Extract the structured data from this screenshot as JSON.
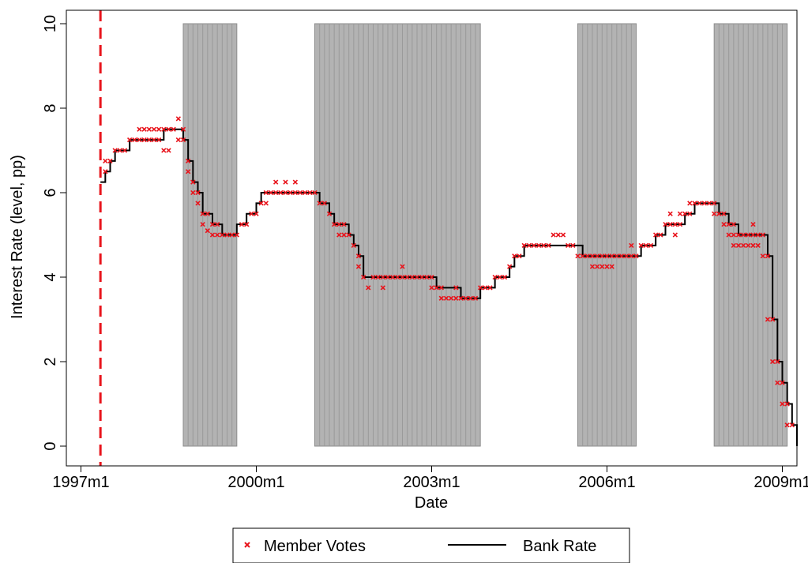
{
  "chart_data": {
    "type": "line",
    "title": "",
    "xlabel": "Date",
    "ylabel": "Interest Rate (level, pp)",
    "x_unit": "months",
    "xlim": [
      "1996-10",
      "2009-04"
    ],
    "ylim": [
      0,
      10
    ],
    "x_ticks": [
      {
        "value": "1997-01",
        "label": "1997m1"
      },
      {
        "value": "2000-01",
        "label": "2000m1"
      },
      {
        "value": "2003-01",
        "label": "2003m1"
      },
      {
        "value": "2006-01",
        "label": "2006m1"
      },
      {
        "value": "2009-01",
        "label": "2009m1"
      }
    ],
    "y_ticks": [
      {
        "value": 0,
        "label": "0"
      },
      {
        "value": 2,
        "label": "2"
      },
      {
        "value": 4,
        "label": "4"
      },
      {
        "value": 6,
        "label": "6"
      },
      {
        "value": 8,
        "label": "8"
      },
      {
        "value": 10,
        "label": "10"
      }
    ],
    "grid": false,
    "vertical_line": {
      "x": "1997-05",
      "style": "dashed",
      "color": "#e8141c"
    },
    "shaded_periods": [
      {
        "start": "1998-10",
        "end": "1999-09"
      },
      {
        "start": "2001-01",
        "end": "2003-11"
      },
      {
        "start": "2005-07",
        "end": "2006-07"
      },
      {
        "start": "2007-11",
        "end": "2009-02"
      }
    ],
    "series": [
      {
        "name": "Bank Rate",
        "type": "step",
        "color": "#000000",
        "points": [
          [
            "1997-05",
            6.25
          ],
          [
            "1997-06",
            6.5
          ],
          [
            "1997-07",
            6.75
          ],
          [
            "1997-08",
            7.0
          ],
          [
            "1997-11",
            7.25
          ],
          [
            "1998-06",
            7.5
          ],
          [
            "1998-10",
            7.25
          ],
          [
            "1998-11",
            6.75
          ],
          [
            "1998-12",
            6.25
          ],
          [
            "1999-01",
            6.0
          ],
          [
            "1999-02",
            5.5
          ],
          [
            "1999-04",
            5.25
          ],
          [
            "1999-06",
            5.0
          ],
          [
            "1999-09",
            5.25
          ],
          [
            "1999-11",
            5.5
          ],
          [
            "2000-01",
            5.75
          ],
          [
            "2000-02",
            6.0
          ],
          [
            "2001-02",
            5.75
          ],
          [
            "2001-04",
            5.5
          ],
          [
            "2001-05",
            5.25
          ],
          [
            "2001-08",
            5.0
          ],
          [
            "2001-09",
            4.75
          ],
          [
            "2001-10",
            4.5
          ],
          [
            "2001-11",
            4.0
          ],
          [
            "2003-02",
            3.75
          ],
          [
            "2003-07",
            3.5
          ],
          [
            "2003-11",
            3.75
          ],
          [
            "2004-02",
            4.0
          ],
          [
            "2004-05",
            4.25
          ],
          [
            "2004-06",
            4.5
          ],
          [
            "2004-08",
            4.75
          ],
          [
            "2005-08",
            4.5
          ],
          [
            "2006-08",
            4.75
          ],
          [
            "2006-11",
            5.0
          ],
          [
            "2007-01",
            5.25
          ],
          [
            "2007-05",
            5.5
          ],
          [
            "2007-07",
            5.75
          ],
          [
            "2007-12",
            5.5
          ],
          [
            "2008-02",
            5.25
          ],
          [
            "2008-04",
            5.0
          ],
          [
            "2008-10",
            4.5
          ],
          [
            "2008-11",
            3.0
          ],
          [
            "2008-12",
            2.0
          ],
          [
            "2009-01",
            1.5
          ],
          [
            "2009-02",
            1.0
          ],
          [
            "2009-03",
            0.5
          ]
        ]
      },
      {
        "name": "Member Votes",
        "type": "scatter",
        "color": "#e8141c",
        "marker": "x",
        "points": [
          [
            "1997-06",
            6.5
          ],
          [
            "1997-06",
            6.75
          ],
          [
            "1997-07",
            6.75
          ],
          [
            "1997-08",
            7.0
          ],
          [
            "1997-09",
            7.0
          ],
          [
            "1997-10",
            7.0
          ],
          [
            "1997-11",
            7.25
          ],
          [
            "1997-12",
            7.25
          ],
          [
            "1998-01",
            7.25
          ],
          [
            "1998-01",
            7.5
          ],
          [
            "1998-02",
            7.25
          ],
          [
            "1998-02",
            7.5
          ],
          [
            "1998-03",
            7.25
          ],
          [
            "1998-03",
            7.5
          ],
          [
            "1998-04",
            7.25
          ],
          [
            "1998-04",
            7.5
          ],
          [
            "1998-05",
            7.25
          ],
          [
            "1998-05",
            7.5
          ],
          [
            "1998-06",
            7.0
          ],
          [
            "1998-06",
            7.5
          ],
          [
            "1998-07",
            7.0
          ],
          [
            "1998-07",
            7.5
          ],
          [
            "1998-08",
            7.5
          ],
          [
            "1998-09",
            7.25
          ],
          [
            "1998-09",
            7.75
          ],
          [
            "1998-10",
            7.25
          ],
          [
            "1998-10",
            7.5
          ],
          [
            "1998-11",
            6.5
          ],
          [
            "1998-11",
            6.75
          ],
          [
            "1998-12",
            6.0
          ],
          [
            "1998-12",
            6.25
          ],
          [
            "1999-01",
            5.75
          ],
          [
            "1999-01",
            6.0
          ],
          [
            "1999-02",
            5.25
          ],
          [
            "1999-02",
            5.5
          ],
          [
            "1999-03",
            5.1
          ],
          [
            "1999-03",
            5.5
          ],
          [
            "1999-04",
            5.0
          ],
          [
            "1999-04",
            5.25
          ],
          [
            "1999-05",
            5.0
          ],
          [
            "1999-05",
            5.25
          ],
          [
            "1999-06",
            5.0
          ],
          [
            "1999-07",
            5.0
          ],
          [
            "1999-08",
            5.0
          ],
          [
            "1999-09",
            5.0
          ],
          [
            "1999-10",
            5.25
          ],
          [
            "1999-11",
            5.25
          ],
          [
            "1999-12",
            5.5
          ],
          [
            "2000-01",
            5.5
          ],
          [
            "2000-02",
            5.75
          ],
          [
            "2000-03",
            5.75
          ],
          [
            "2000-03",
            6.0
          ],
          [
            "2000-04",
            6.0
          ],
          [
            "2000-05",
            6.0
          ],
          [
            "2000-05",
            6.25
          ],
          [
            "2000-06",
            6.0
          ],
          [
            "2000-07",
            6.0
          ],
          [
            "2000-07",
            6.25
          ],
          [
            "2000-08",
            6.0
          ],
          [
            "2000-09",
            6.0
          ],
          [
            "2000-09",
            6.25
          ],
          [
            "2000-10",
            6.0
          ],
          [
            "2000-11",
            6.0
          ],
          [
            "2000-12",
            6.0
          ],
          [
            "2001-01",
            6.0
          ],
          [
            "2001-02",
            5.75
          ],
          [
            "2001-03",
            5.75
          ],
          [
            "2001-04",
            5.5
          ],
          [
            "2001-05",
            5.25
          ],
          [
            "2001-06",
            5.0
          ],
          [
            "2001-06",
            5.25
          ],
          [
            "2001-07",
            5.0
          ],
          [
            "2001-07",
            5.25
          ],
          [
            "2001-08",
            5.0
          ],
          [
            "2001-09",
            4.75
          ],
          [
            "2001-10",
            4.5
          ],
          [
            "2001-10",
            4.25
          ],
          [
            "2001-11",
            4.0
          ],
          [
            "2001-12",
            3.75
          ],
          [
            "2002-01",
            4.0
          ],
          [
            "2002-02",
            4.0
          ],
          [
            "2002-03",
            3.75
          ],
          [
            "2002-03",
            4.0
          ],
          [
            "2002-04",
            4.0
          ],
          [
            "2002-05",
            4.0
          ],
          [
            "2002-06",
            4.0
          ],
          [
            "2002-07",
            4.0
          ],
          [
            "2002-07",
            4.25
          ],
          [
            "2002-08",
            4.0
          ],
          [
            "2002-09",
            4.0
          ],
          [
            "2002-10",
            4.0
          ],
          [
            "2002-11",
            4.0
          ],
          [
            "2002-12",
            4.0
          ],
          [
            "2003-01",
            3.75
          ],
          [
            "2003-01",
            4.0
          ],
          [
            "2003-02",
            3.75
          ],
          [
            "2003-03",
            3.5
          ],
          [
            "2003-03",
            3.75
          ],
          [
            "2003-04",
            3.5
          ],
          [
            "2003-05",
            3.5
          ],
          [
            "2003-06",
            3.5
          ],
          [
            "2003-06",
            3.75
          ],
          [
            "2003-07",
            3.5
          ],
          [
            "2003-08",
            3.5
          ],
          [
            "2003-09",
            3.5
          ],
          [
            "2003-10",
            3.5
          ],
          [
            "2003-11",
            3.75
          ],
          [
            "2003-12",
            3.75
          ],
          [
            "2004-01",
            3.75
          ],
          [
            "2004-02",
            4.0
          ],
          [
            "2004-03",
            4.0
          ],
          [
            "2004-04",
            4.0
          ],
          [
            "2004-05",
            4.25
          ],
          [
            "2004-06",
            4.5
          ],
          [
            "2004-07",
            4.5
          ],
          [
            "2004-08",
            4.75
          ],
          [
            "2004-09",
            4.75
          ],
          [
            "2004-10",
            4.75
          ],
          [
            "2004-11",
            4.75
          ],
          [
            "2004-12",
            4.75
          ],
          [
            "2005-01",
            4.75
          ],
          [
            "2005-02",
            5.0
          ],
          [
            "2005-03",
            5.0
          ],
          [
            "2005-04",
            5.0
          ],
          [
            "2005-05",
            4.75
          ],
          [
            "2005-06",
            4.75
          ],
          [
            "2005-07",
            4.5
          ],
          [
            "2005-08",
            4.5
          ],
          [
            "2005-09",
            4.5
          ],
          [
            "2005-10",
            4.25
          ],
          [
            "2005-10",
            4.5
          ],
          [
            "2005-11",
            4.25
          ],
          [
            "2005-11",
            4.5
          ],
          [
            "2005-12",
            4.25
          ],
          [
            "2005-12",
            4.5
          ],
          [
            "2006-01",
            4.25
          ],
          [
            "2006-01",
            4.5
          ],
          [
            "2006-02",
            4.25
          ],
          [
            "2006-02",
            4.5
          ],
          [
            "2006-03",
            4.5
          ],
          [
            "2006-04",
            4.5
          ],
          [
            "2006-05",
            4.5
          ],
          [
            "2006-06",
            4.5
          ],
          [
            "2006-06",
            4.75
          ],
          [
            "2006-07",
            4.5
          ],
          [
            "2006-08",
            4.75
          ],
          [
            "2006-09",
            4.75
          ],
          [
            "2006-10",
            4.75
          ],
          [
            "2006-11",
            5.0
          ],
          [
            "2006-12",
            5.0
          ],
          [
            "2007-01",
            5.25
          ],
          [
            "2007-02",
            5.25
          ],
          [
            "2007-02",
            5.5
          ],
          [
            "2007-03",
            5.25
          ],
          [
            "2007-03",
            5.0
          ],
          [
            "2007-04",
            5.25
          ],
          [
            "2007-04",
            5.5
          ],
          [
            "2007-05",
            5.5
          ],
          [
            "2007-06",
            5.5
          ],
          [
            "2007-06",
            5.75
          ],
          [
            "2007-07",
            5.75
          ],
          [
            "2007-08",
            5.75
          ],
          [
            "2007-09",
            5.75
          ],
          [
            "2007-10",
            5.75
          ],
          [
            "2007-11",
            5.5
          ],
          [
            "2007-11",
            5.75
          ],
          [
            "2007-12",
            5.5
          ],
          [
            "2008-01",
            5.25
          ],
          [
            "2008-01",
            5.5
          ],
          [
            "2008-02",
            5.0
          ],
          [
            "2008-02",
            5.25
          ],
          [
            "2008-03",
            4.75
          ],
          [
            "2008-03",
            5.0
          ],
          [
            "2008-03",
            5.25
          ],
          [
            "2008-04",
            4.75
          ],
          [
            "2008-04",
            5.0
          ],
          [
            "2008-05",
            4.75
          ],
          [
            "2008-05",
            5.0
          ],
          [
            "2008-06",
            4.75
          ],
          [
            "2008-06",
            5.0
          ],
          [
            "2008-07",
            4.75
          ],
          [
            "2008-07",
            5.0
          ],
          [
            "2008-07",
            5.25
          ],
          [
            "2008-08",
            4.75
          ],
          [
            "2008-08",
            5.0
          ],
          [
            "2008-09",
            4.5
          ],
          [
            "2008-09",
            5.0
          ],
          [
            "2008-10",
            3.0
          ],
          [
            "2008-10",
            4.5
          ],
          [
            "2008-11",
            2.0
          ],
          [
            "2008-11",
            3.0
          ],
          [
            "2008-12",
            1.5
          ],
          [
            "2008-12",
            2.0
          ],
          [
            "2009-01",
            1.0
          ],
          [
            "2009-01",
            1.5
          ],
          [
            "2009-02",
            0.5
          ],
          [
            "2009-02",
            1.0
          ],
          [
            "2009-03",
            0.5
          ]
        ]
      }
    ],
    "legend": {
      "position": "bottom",
      "entries": [
        {
          "label": "Member Votes",
          "marker": "x",
          "color": "#e8141c"
        },
        {
          "label": "Bank Rate",
          "marker": "line",
          "color": "#000000"
        }
      ]
    }
  }
}
